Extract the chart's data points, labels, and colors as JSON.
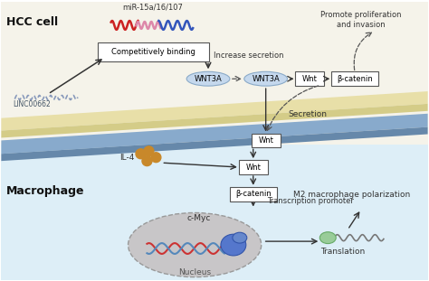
{
  "bg_hcc": "#f5f3ea",
  "bg_macrophage": "#ddeef7",
  "title_hcc": "HCC cell",
  "title_macrophage": "Macrophage",
  "label_linc": "LINC00662",
  "label_mir": "miR-15a/16/107",
  "label_comp_bind": "Competitively binding",
  "label_increase": "Increase secretion",
  "label_wnt3a": "WNT3A",
  "label_wnt": "Wnt",
  "label_bcatenin": "β-catenin",
  "label_promote": "Promote proliferation\nand invasion",
  "label_secretion": "Secretion",
  "label_il4": "IL-4",
  "label_wnt2": "Wnt",
  "label_bcatenin2": "β-catenin",
  "label_transcription": "Transcription promoter",
  "label_cmyc": "c-Myc",
  "label_nucleus": "Nucleus",
  "label_translation": "Translation",
  "label_m2": "M2 macrophage polarization",
  "colors": {
    "box_border": "#555555",
    "arrow_solid": "#333333",
    "arrow_dashed": "#555555",
    "ellipse_wnt3a_fill": "#c5d8ed",
    "ellipse_wnt3a_edge": "#8aaac8",
    "mir_red": "#cc2222",
    "mir_pink": "#dd88aa",
    "mir_blue": "#3355bb",
    "linc_color": "#8899bb",
    "il4_color": "#c8882a",
    "nucleus_fill": "#c8c6c8",
    "nucleus_border": "#999999",
    "dna_red": "#cc3333",
    "dna_blue": "#5588bb",
    "protein_blue": "#5577bb",
    "protein_green": "#88bb88",
    "mem_hcc_light": "#e8dfa8",
    "mem_hcc_dark": "#d4cc88",
    "mem_mac_light": "#88aacc",
    "mem_mac_dark": "#6688aa"
  }
}
